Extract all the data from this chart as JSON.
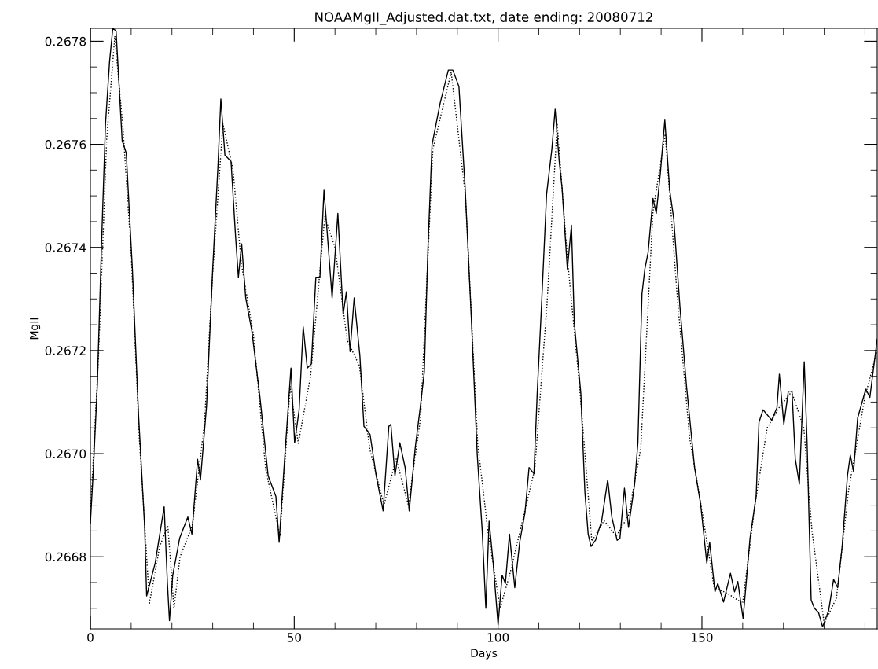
{
  "chart_data": {
    "type": "line",
    "title": "NOAAMgII_Adjusted.dat.txt, date ending: 20080712",
    "xlabel": "Days",
    "ylabel": "MgII",
    "xlim": [
      0,
      193
    ],
    "xticks": [
      0,
      50,
      100,
      150
    ],
    "ylim": [
      0.26666,
      0.267825
    ],
    "yticks": [
      0.2668,
      {
        "value": 0.267,
        "label": "0.2670"
      },
      0.2672,
      0.2674,
      0.2676,
      0.2678
    ],
    "grid": false,
    "legend": false,
    "marker": "none",
    "series": [
      {
        "color": "#000000",
        "line_style": "solid",
        "x": [
          0,
          0.7,
          1.7,
          2.7,
          3.7,
          4.7,
          5.5,
          6.3,
          7.8,
          8.8,
          10.3,
          11.8,
          13.3,
          13.8,
          15.9,
          18.1,
          18.9,
          19.4,
          20.2,
          21.9,
          23.9,
          24.9,
          26.3,
          27.0,
          28.5,
          30.0,
          31.3,
          32.0,
          33.0,
          34.5,
          35.6,
          36.3,
          37.1,
          38.1,
          39.6,
          41.6,
          43.6,
          45.5,
          46.3,
          47.7,
          49.2,
          50.1,
          51.2,
          52.2,
          53.2,
          54.2,
          55.3,
          56.3,
          57.3,
          59.3,
          60.7,
          62.0,
          62.8,
          63.7,
          64.7,
          66.1,
          67.1,
          68.6,
          70.1,
          71.8,
          73.2,
          73.7,
          74.7,
          75.9,
          77.2,
          78.2,
          79.7,
          80.9,
          81.9,
          82.8,
          83.8,
          85.8,
          87.8,
          88.9,
          90.4,
          91.9,
          93.4,
          94.9,
          96.1,
          97.0,
          97.8,
          98.8,
          100.0,
          101.0,
          101.8,
          102.8,
          104.1,
          105.3,
          106.6,
          107.6,
          108.8,
          109.6,
          110.6,
          111.9,
          113.2,
          114.0,
          115.0,
          115.7,
          117.0,
          118.0,
          118.7,
          120.3,
          121.3,
          122.1,
          122.8,
          123.9,
          125.4,
          126.9,
          127.9,
          129.2,
          129.9,
          131.0,
          132.0,
          133.5,
          134.3,
          135.3,
          136.0,
          136.8,
          138.0,
          138.8,
          139.8,
          140.9,
          142.1,
          143.1,
          144.6,
          146.2,
          148.2,
          149.7,
          151.2,
          151.9,
          153.2,
          153.9,
          155.3,
          157.0,
          158.0,
          158.8,
          160.1,
          161.8,
          163.3,
          164.0,
          165.0,
          167.1,
          168.4,
          169.0,
          170.1,
          171.2,
          172.1,
          172.9,
          173.9,
          175.1,
          175.8,
          176.8,
          177.6,
          178.6,
          179.6,
          181.1,
          182.3,
          183.3,
          184.4,
          185.7,
          186.4,
          187.2,
          188.2,
          190.2,
          191.2,
          193.0
        ],
        "values": [
          0.266865,
          0.266965,
          0.267133,
          0.267398,
          0.267639,
          0.26776,
          0.267825,
          0.26782,
          0.267607,
          0.267583,
          0.267358,
          0.267077,
          0.26686,
          0.266724,
          0.266788,
          0.266897,
          0.266748,
          0.266676,
          0.266764,
          0.266836,
          0.266877,
          0.266844,
          0.266989,
          0.266949,
          0.267093,
          0.267358,
          0.267559,
          0.267688,
          0.267579,
          0.267567,
          0.267423,
          0.267342,
          0.267407,
          0.267302,
          0.267238,
          0.267109,
          0.266957,
          0.266917,
          0.266828,
          0.266997,
          0.267166,
          0.267021,
          0.267085,
          0.267246,
          0.267166,
          0.267174,
          0.267342,
          0.267342,
          0.267511,
          0.267302,
          0.267466,
          0.26727,
          0.267314,
          0.267198,
          0.267302,
          0.26719,
          0.267053,
          0.267037,
          0.266957,
          0.266889,
          0.267053,
          0.267057,
          0.266957,
          0.267021,
          0.266973,
          0.266889,
          0.267013,
          0.267089,
          0.267158,
          0.267398,
          0.267599,
          0.26768,
          0.267744,
          0.267744,
          0.267712,
          0.267519,
          0.26727,
          0.266997,
          0.266852,
          0.2667,
          0.266869,
          0.266788,
          0.266668,
          0.266764,
          0.266748,
          0.266844,
          0.26674,
          0.266828,
          0.266885,
          0.266973,
          0.266961,
          0.267117,
          0.267278,
          0.267503,
          0.267591,
          0.267668,
          0.267567,
          0.267515,
          0.267358,
          0.267443,
          0.267254,
          0.267117,
          0.266925,
          0.266844,
          0.26682,
          0.266832,
          0.266869,
          0.266949,
          0.266877,
          0.266832,
          0.266836,
          0.266933,
          0.266857,
          0.266941,
          0.267021,
          0.26731,
          0.267358,
          0.26739,
          0.267495,
          0.267466,
          0.267543,
          0.267647,
          0.267511,
          0.267455,
          0.267286,
          0.267133,
          0.266973,
          0.266901,
          0.266788,
          0.266828,
          0.266732,
          0.266748,
          0.266712,
          0.266768,
          0.266732,
          0.266752,
          0.26668,
          0.266836,
          0.266917,
          0.267061,
          0.267085,
          0.267065,
          0.267089,
          0.267154,
          0.267057,
          0.267121,
          0.267121,
          0.26699,
          0.266941,
          0.267178,
          0.267021,
          0.266716,
          0.2667,
          0.266692,
          0.266664,
          0.266696,
          0.266756,
          0.26674,
          0.26682,
          0.266957,
          0.266997,
          0.266965,
          0.267069,
          0.267125,
          0.267109,
          0.267222
        ]
      },
      {
        "color": "#000000",
        "line_style": "dotted",
        "x": [
          0,
          2,
          4,
          6,
          8,
          10,
          12,
          14.5,
          17,
          19,
          20.5,
          22,
          25,
          28,
          30,
          32.5,
          35,
          37,
          40,
          43,
          46.5,
          49,
          51,
          54,
          57.5,
          60,
          63,
          66,
          68.5,
          72,
          75,
          78,
          81,
          84,
          88.5,
          92,
          95,
          97.5,
          100.5,
          103,
          106,
          109,
          112,
          114.5,
          117,
          120,
          123,
          126,
          129,
          132,
          135,
          138,
          141,
          144,
          147,
          150,
          153,
          156,
          160,
          163,
          166,
          169,
          172,
          175,
          177,
          180,
          183,
          186,
          190,
          193
        ],
        "values": [
          0.26688,
          0.26719,
          0.26761,
          0.26781,
          0.26763,
          0.26739,
          0.26703,
          0.26671,
          0.26682,
          0.26686,
          0.2667,
          0.2668,
          0.26686,
          0.26706,
          0.26735,
          0.26764,
          0.26755,
          0.26737,
          0.26723,
          0.26697,
          0.26684,
          0.26713,
          0.26702,
          0.26715,
          0.26746,
          0.2674,
          0.26722,
          0.26717,
          0.26701,
          0.2669,
          0.26699,
          0.2669,
          0.26707,
          0.26759,
          0.26774,
          0.2675,
          0.26702,
          0.26685,
          0.2667,
          0.26677,
          0.26687,
          0.26697,
          0.26729,
          0.26764,
          0.26738,
          0.26713,
          0.26683,
          0.26687,
          0.26684,
          0.26688,
          0.26701,
          0.26747,
          0.26762,
          0.2673,
          0.26703,
          0.26689,
          0.26674,
          0.26673,
          0.26671,
          0.2669,
          0.26705,
          0.26709,
          0.26712,
          0.26705,
          0.26685,
          0.26667,
          0.26672,
          0.26693,
          0.26711,
          0.2672
        ]
      }
    ]
  }
}
